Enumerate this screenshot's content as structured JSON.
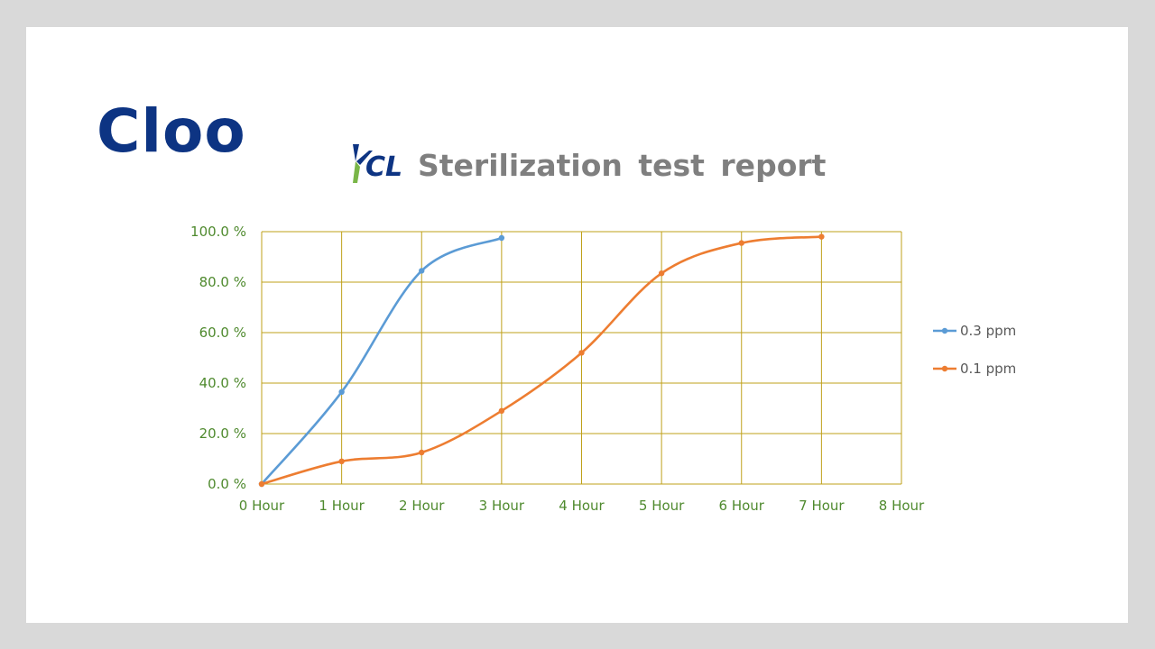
{
  "brand": {
    "name": "Cloo"
  },
  "report": {
    "logo_text": "KCL",
    "title": "Sterilization  test  report"
  },
  "colors": {
    "grid": "#bfa11a",
    "tick_text": "#4f8a2e",
    "series_1": "#5b9bd5",
    "series_2": "#ed7d31"
  },
  "chart_data": {
    "type": "line",
    "title": "",
    "xlabel": "",
    "ylabel": "",
    "x": [
      0,
      1,
      2,
      3,
      4,
      5,
      6,
      7
    ],
    "xlim": [
      0,
      8
    ],
    "ylim": [
      0,
      100
    ],
    "x_ticks": [
      "0 Hour",
      "1 Hour",
      "2 Hour",
      "3 Hour",
      "4 Hour",
      "5 Hour",
      "6 Hour",
      "7 Hour",
      "8 Hour"
    ],
    "y_ticks": [
      "0.0 %",
      "20.0 %",
      "40.0 %",
      "60.0 %",
      "80.0 %",
      "100.0 %"
    ],
    "grid": true,
    "smooth": true,
    "legend_position": "right",
    "series": [
      {
        "name": "0.3  ppm",
        "color": "#5b9bd5",
        "x": [
          0,
          1,
          2,
          3
        ],
        "values": [
          0,
          36.5,
          84.5,
          97.5
        ]
      },
      {
        "name": "0.1  ppm",
        "color": "#ed7d31",
        "x": [
          0,
          1,
          2,
          3,
          4,
          5,
          6,
          7
        ],
        "values": [
          0,
          9,
          12.5,
          29,
          52,
          83.5,
          95.5,
          98
        ]
      }
    ]
  }
}
